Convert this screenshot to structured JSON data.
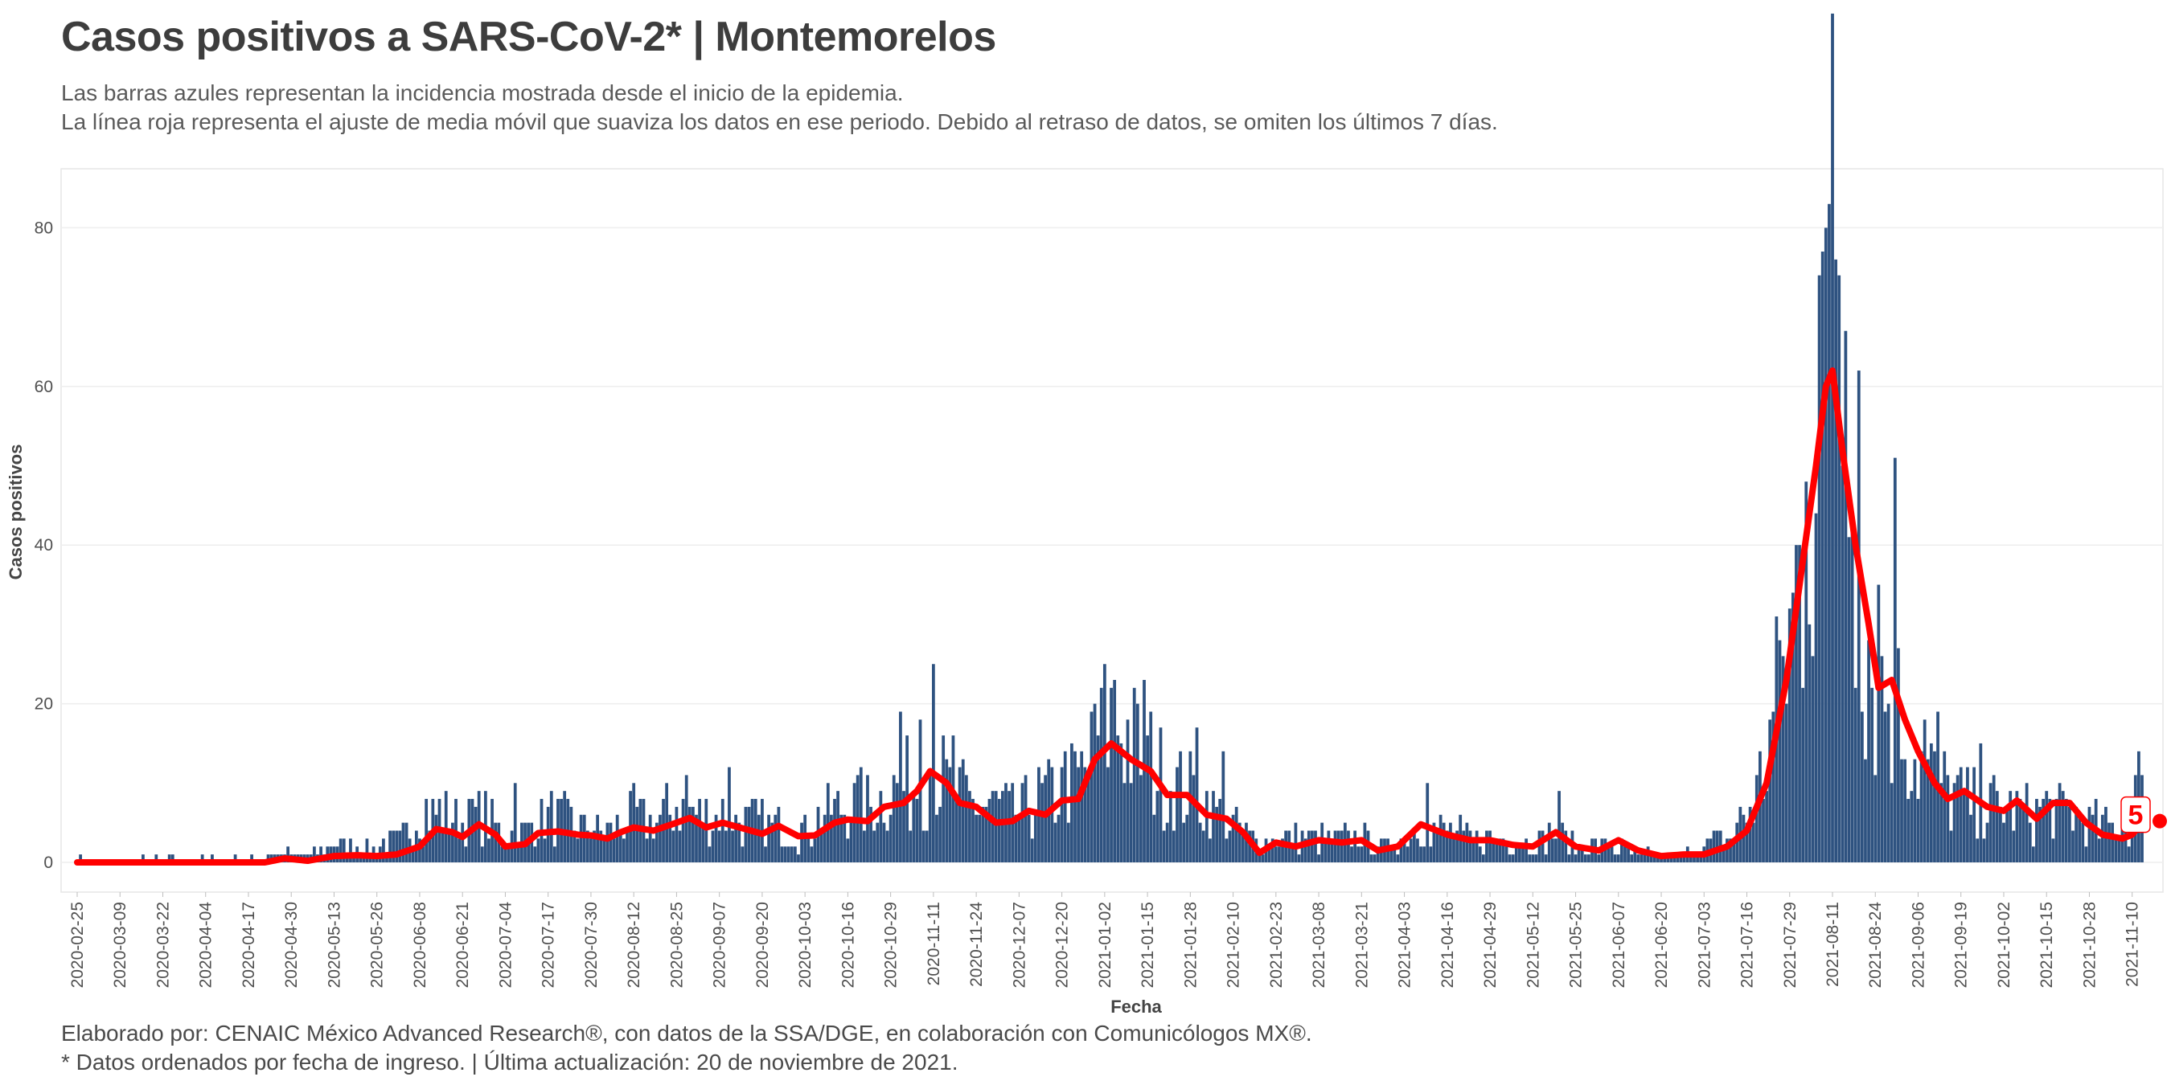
{
  "header": {
    "title": "Casos positivos a SARS-CoV-2* | Montemorelos",
    "subtitle_line1": "Las barras azules representan la incidencia mostrada desde el inicio de la epidemia.",
    "subtitle_line2": "La línea roja representa el ajuste de media móvil que suaviza los datos en ese periodo. Debido al retraso de datos, se omiten los últimos 7 días."
  },
  "footer": {
    "line1": "Elaborado por: CENAIC México Advanced Research®, con datos de la SSA/DGE, en colaboración con Comunicólogos MX®.",
    "line2": "* Datos ordenados por fecha de ingreso. | Última actualización: 20 de noviembre de 2021."
  },
  "colors": {
    "bars": "#2e5280",
    "line": "#ff0000",
    "grid": "#eeeeee",
    "border": "#e6e6e6"
  },
  "chart_data": {
    "type": "bar",
    "xlabel": "Fecha",
    "ylabel": "Casos positivos",
    "ylim": [
      0,
      87
    ],
    "yticks": [
      0,
      20,
      40,
      60,
      80
    ],
    "x_start": "2020-02-25",
    "x_end": "2021-11-13",
    "xtick_labels": [
      "2020-02-25",
      "2020-03-09",
      "2020-03-22",
      "2020-04-04",
      "2020-04-17",
      "2020-04-30",
      "2020-05-13",
      "2020-05-26",
      "2020-06-08",
      "2020-06-21",
      "2020-07-04",
      "2020-07-17",
      "2020-07-30",
      "2020-08-12",
      "2020-08-25",
      "2020-09-07",
      "2020-09-20",
      "2020-10-03",
      "2020-10-16",
      "2020-10-29",
      "2020-11-11",
      "2020-11-24",
      "2020-12-07",
      "2020-12-20",
      "2021-01-02",
      "2021-01-15",
      "2021-01-28",
      "2021-02-10",
      "2021-02-23",
      "2021-03-08",
      "2021-03-21",
      "2021-04-03",
      "2021-04-16",
      "2021-04-29",
      "2021-05-12",
      "2021-05-25",
      "2021-06-07",
      "2021-06-20",
      "2021-07-03",
      "2021-07-16",
      "2021-07-29",
      "2021-08-11",
      "2021-08-24",
      "2021-09-06",
      "2021-09-19",
      "2021-10-02",
      "2021-10-15",
      "2021-10-28",
      "2021-11-10"
    ],
    "bar_anchors": [
      [
        "2020-02-25",
        0
      ],
      [
        "2020-04-17",
        0
      ],
      [
        "2020-04-25",
        1
      ],
      [
        "2020-05-05",
        1
      ],
      [
        "2020-05-13",
        2
      ],
      [
        "2020-05-26",
        2
      ],
      [
        "2020-06-03",
        3
      ],
      [
        "2020-06-08",
        7
      ],
      [
        "2020-06-15",
        6
      ],
      [
        "2020-06-21",
        5
      ],
      [
        "2020-06-28",
        6
      ],
      [
        "2020-07-04",
        3
      ],
      [
        "2020-07-10",
        4
      ],
      [
        "2020-07-17",
        6
      ],
      [
        "2020-07-24",
        5
      ],
      [
        "2020-07-30",
        4
      ],
      [
        "2020-08-05",
        4
      ],
      [
        "2020-08-12",
        6
      ],
      [
        "2020-08-18",
        5
      ],
      [
        "2020-08-25",
        7
      ],
      [
        "2020-08-31",
        6
      ],
      [
        "2020-09-07",
        6
      ],
      [
        "2020-09-14",
        5
      ],
      [
        "2020-09-20",
        5
      ],
      [
        "2020-09-27",
        4
      ],
      [
        "2020-10-03",
        4
      ],
      [
        "2020-10-09",
        6
      ],
      [
        "2020-10-16",
        7
      ],
      [
        "2020-10-22",
        7
      ],
      [
        "2020-10-29",
        9
      ],
      [
        "2020-11-05",
        10
      ],
      [
        "2020-11-11",
        13
      ],
      [
        "2020-11-16",
        9
      ],
      [
        "2020-11-24",
        7
      ],
      [
        "2020-11-30",
        7
      ],
      [
        "2020-12-07",
        6
      ],
      [
        "2020-12-13",
        8
      ],
      [
        "2020-12-20",
        9
      ],
      [
        "2020-12-27",
        11
      ],
      [
        "2021-01-02",
        17
      ],
      [
        "2021-01-06",
        18
      ],
      [
        "2021-01-10",
        15
      ],
      [
        "2021-01-15",
        13
      ],
      [
        "2021-01-21",
        10
      ],
      [
        "2021-01-28",
        9
      ],
      [
        "2021-02-03",
        7
      ],
      [
        "2021-02-10",
        5
      ],
      [
        "2021-02-16",
        3
      ],
      [
        "2021-02-23",
        3
      ],
      [
        "2021-03-01",
        3
      ],
      [
        "2021-03-08",
        3
      ],
      [
        "2021-03-15",
        3
      ],
      [
        "2021-03-21",
        3
      ],
      [
        "2021-03-28",
        2
      ],
      [
        "2021-04-03",
        3
      ],
      [
        "2021-04-08",
        5
      ],
      [
        "2021-04-16",
        4
      ],
      [
        "2021-04-23",
        3
      ],
      [
        "2021-04-29",
        3
      ],
      [
        "2021-05-06",
        3
      ],
      [
        "2021-05-12",
        2
      ],
      [
        "2021-05-18",
        4
      ],
      [
        "2021-05-25",
        2
      ],
      [
        "2021-06-01",
        2
      ],
      [
        "2021-06-07",
        2
      ],
      [
        "2021-06-13",
        1
      ],
      [
        "2021-06-20",
        1
      ],
      [
        "2021-06-27",
        1
      ],
      [
        "2021-07-03",
        2
      ],
      [
        "2021-07-10",
        3
      ],
      [
        "2021-07-16",
        6
      ],
      [
        "2021-07-21",
        11
      ],
      [
        "2021-07-25",
        20
      ],
      [
        "2021-07-29",
        28
      ],
      [
        "2021-08-02",
        40
      ],
      [
        "2021-08-05",
        52
      ],
      [
        "2021-08-08",
        66
      ],
      [
        "2021-08-11",
        72
      ],
      [
        "2021-08-14",
        58
      ],
      [
        "2021-08-17",
        48
      ],
      [
        "2021-08-20",
        34
      ],
      [
        "2021-08-24",
        24
      ],
      [
        "2021-08-28",
        21
      ],
      [
        "2021-09-01",
        18
      ],
      [
        "2021-09-06",
        13
      ],
      [
        "2021-09-12",
        10
      ],
      [
        "2021-09-19",
        8
      ],
      [
        "2021-09-26",
        7
      ],
      [
        "2021-10-02",
        7
      ],
      [
        "2021-10-09",
        6
      ],
      [
        "2021-10-15",
        7
      ],
      [
        "2021-10-22",
        6
      ],
      [
        "2021-10-28",
        5
      ],
      [
        "2021-11-04",
        4
      ],
      [
        "2021-11-10",
        6
      ],
      [
        "2021-11-13",
        8
      ]
    ],
    "bar_spikes": [
      [
        "2020-06-23",
        8
      ],
      [
        "2020-07-07",
        10
      ],
      [
        "2020-08-28",
        11
      ],
      [
        "2020-09-10",
        12
      ],
      [
        "2020-10-20",
        12
      ],
      [
        "2020-11-01",
        19
      ],
      [
        "2020-11-07",
        18
      ],
      [
        "2020-11-11",
        25
      ],
      [
        "2020-11-17",
        16
      ],
      [
        "2020-12-21",
        14
      ],
      [
        "2020-12-30",
        20
      ],
      [
        "2021-01-01",
        22
      ],
      [
        "2021-01-05",
        23
      ],
      [
        "2021-01-14",
        23
      ],
      [
        "2021-01-30",
        17
      ],
      [
        "2021-02-07",
        14
      ],
      [
        "2021-04-10",
        10
      ],
      [
        "2021-05-20",
        9
      ],
      [
        "2021-07-26",
        28
      ],
      [
        "2021-08-03",
        48
      ],
      [
        "2021-08-07",
        74
      ],
      [
        "2021-08-09",
        80
      ],
      [
        "2021-08-10",
        83
      ],
      [
        "2021-08-12",
        76
      ],
      [
        "2021-08-15",
        67
      ],
      [
        "2021-08-19",
        62
      ],
      [
        "2021-08-25",
        35
      ],
      [
        "2021-08-30",
        51
      ],
      [
        "2021-09-08",
        18
      ],
      [
        "2021-09-12",
        19
      ],
      [
        "2021-09-25",
        15
      ],
      [
        "2021-11-11",
        11
      ],
      [
        "2021-11-12",
        14
      ]
    ],
    "line_anchors": [
      [
        "2020-02-25",
        0
      ],
      [
        "2020-04-22",
        0
      ],
      [
        "2020-04-28",
        0.5
      ],
      [
        "2020-05-05",
        0.2
      ],
      [
        "2020-05-13",
        0.8
      ],
      [
        "2020-05-20",
        0.9
      ],
      [
        "2020-05-26",
        0.8
      ],
      [
        "2020-06-01",
        1.0
      ],
      [
        "2020-06-08",
        2.0
      ],
      [
        "2020-06-13",
        4.2
      ],
      [
        "2020-06-18",
        3.8
      ],
      [
        "2020-06-21",
        3.2
      ],
      [
        "2020-06-26",
        4.8
      ],
      [
        "2020-07-01",
        3.5
      ],
      [
        "2020-07-04",
        2.0
      ],
      [
        "2020-07-10",
        2.3
      ],
      [
        "2020-07-14",
        3.7
      ],
      [
        "2020-07-20",
        3.9
      ],
      [
        "2020-07-26",
        3.5
      ],
      [
        "2020-07-30",
        3.4
      ],
      [
        "2020-08-04",
        3.0
      ],
      [
        "2020-08-08",
        3.8
      ],
      [
        "2020-08-12",
        4.4
      ],
      [
        "2020-08-18",
        4.0
      ],
      [
        "2020-08-25",
        5.0
      ],
      [
        "2020-08-29",
        5.6
      ],
      [
        "2020-09-03",
        4.4
      ],
      [
        "2020-09-08",
        5.0
      ],
      [
        "2020-09-14",
        4.3
      ],
      [
        "2020-09-20",
        3.6
      ],
      [
        "2020-09-25",
        4.6
      ],
      [
        "2020-10-01",
        3.3
      ],
      [
        "2020-10-06",
        3.4
      ],
      [
        "2020-10-12",
        5.0
      ],
      [
        "2020-10-16",
        5.4
      ],
      [
        "2020-10-22",
        5.2
      ],
      [
        "2020-10-27",
        7.0
      ],
      [
        "2020-11-02",
        7.5
      ],
      [
        "2020-11-06",
        9.0
      ],
      [
        "2020-11-10",
        11.5
      ],
      [
        "2020-11-15",
        10.0
      ],
      [
        "2020-11-19",
        7.5
      ],
      [
        "2020-11-24",
        7.0
      ],
      [
        "2020-11-30",
        5.0
      ],
      [
        "2020-12-05",
        5.2
      ],
      [
        "2020-12-10",
        6.5
      ],
      [
        "2020-12-15",
        6.0
      ],
      [
        "2020-12-20",
        7.8
      ],
      [
        "2020-12-25",
        8.0
      ],
      [
        "2020-12-30",
        13.0
      ],
      [
        "2021-01-04",
        15.0
      ],
      [
        "2021-01-10",
        13.0
      ],
      [
        "2021-01-16",
        11.5
      ],
      [
        "2021-01-21",
        8.5
      ],
      [
        "2021-01-27",
        8.5
      ],
      [
        "2021-02-02",
        6.0
      ],
      [
        "2021-02-08",
        5.5
      ],
      [
        "2021-02-13",
        3.8
      ],
      [
        "2021-02-18",
        1.2
      ],
      [
        "2021-02-23",
        2.5
      ],
      [
        "2021-03-01",
        2.0
      ],
      [
        "2021-03-08",
        2.8
      ],
      [
        "2021-03-15",
        2.5
      ],
      [
        "2021-03-21",
        2.8
      ],
      [
        "2021-03-26",
        1.5
      ],
      [
        "2021-04-01",
        2.0
      ],
      [
        "2021-04-08",
        4.8
      ],
      [
        "2021-04-16",
        3.5
      ],
      [
        "2021-04-23",
        2.8
      ],
      [
        "2021-04-29",
        2.8
      ],
      [
        "2021-05-06",
        2.2
      ],
      [
        "2021-05-12",
        2.0
      ],
      [
        "2021-05-19",
        3.8
      ],
      [
        "2021-05-25",
        2.0
      ],
      [
        "2021-06-01",
        1.5
      ],
      [
        "2021-06-07",
        2.8
      ],
      [
        "2021-06-13",
        1.5
      ],
      [
        "2021-06-20",
        0.8
      ],
      [
        "2021-06-27",
        1.0
      ],
      [
        "2021-07-03",
        1.0
      ],
      [
        "2021-07-10",
        2.0
      ],
      [
        "2021-07-16",
        4.0
      ],
      [
        "2021-07-22",
        10.0
      ],
      [
        "2021-07-28",
        23.0
      ],
      [
        "2021-08-02",
        38.0
      ],
      [
        "2021-08-06",
        50.0
      ],
      [
        "2021-08-09",
        60.0
      ],
      [
        "2021-08-11",
        62.0
      ],
      [
        "2021-08-14",
        52.0
      ],
      [
        "2021-08-18",
        40.0
      ],
      [
        "2021-08-22",
        30.0
      ],
      [
        "2021-08-25",
        22.0
      ],
      [
        "2021-08-29",
        23.0
      ],
      [
        "2021-09-02",
        18.0
      ],
      [
        "2021-09-06",
        14.0
      ],
      [
        "2021-09-11",
        10.0
      ],
      [
        "2021-09-15",
        8.0
      ],
      [
        "2021-09-20",
        9.0
      ],
      [
        "2021-09-27",
        7.0
      ],
      [
        "2021-10-02",
        6.5
      ],
      [
        "2021-10-06",
        7.8
      ],
      [
        "2021-10-12",
        5.5
      ],
      [
        "2021-10-17",
        7.5
      ],
      [
        "2021-10-22",
        7.5
      ],
      [
        "2021-10-27",
        5.0
      ],
      [
        "2021-11-01",
        3.5
      ],
      [
        "2021-11-07",
        3.0
      ],
      [
        "2021-11-10",
        3.5
      ],
      [
        "2021-11-13",
        5.0
      ]
    ],
    "last_value_label": "5"
  }
}
